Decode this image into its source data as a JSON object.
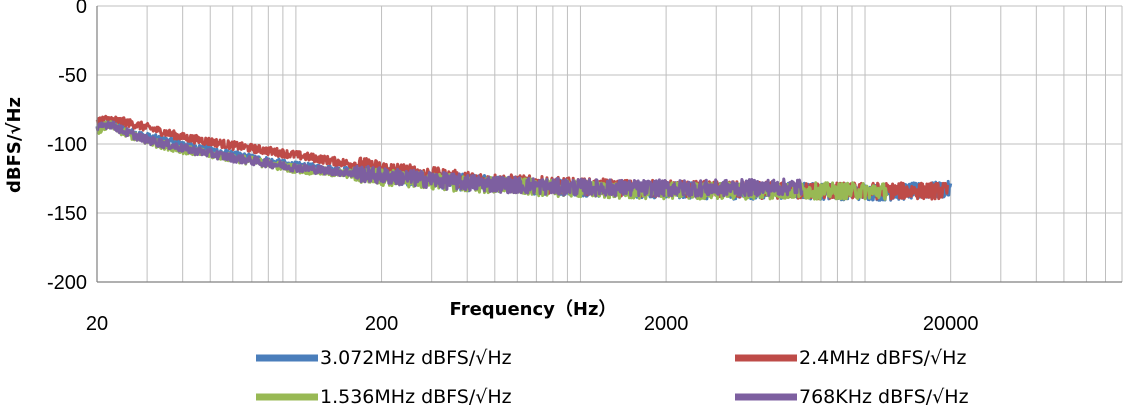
{
  "chart_data": {
    "type": "line",
    "title": "",
    "xlabel": "Frequency（Hz）",
    "ylabel": "dBFS/√Hz",
    "x_scale": "log",
    "xlim": [
      20,
      80000
    ],
    "ylim": [
      -200,
      0
    ],
    "x_ticks": [
      20,
      200,
      2000,
      20000
    ],
    "x_tick_labels": [
      "20",
      "200",
      "2000",
      "20000"
    ],
    "y_ticks": [
      0,
      -50,
      -100,
      -150,
      -200
    ],
    "y_tick_labels": [
      "0",
      "-50",
      "-100",
      "-150",
      "-200"
    ],
    "grid": true,
    "legend_position": "bottom",
    "series": [
      {
        "name": "3.072MHz  dBFS/√Hz",
        "color": "#4a7ebb",
        "x": [
          20,
          22,
          25,
          30,
          40,
          60,
          100,
          200,
          400,
          800,
          1500,
          3000,
          6000,
          12000,
          20000
        ],
        "y": [
          -88,
          -84,
          -90,
          -95,
          -100,
          -108,
          -116,
          -122,
          -128,
          -131,
          -133,
          -134,
          -134,
          -135,
          -133
        ]
      },
      {
        "name": "2.4MHz  dBFS/√Hz",
        "color": "#be4b48",
        "x": [
          20,
          22,
          25,
          30,
          40,
          60,
          100,
          200,
          400,
          800,
          1500,
          3000,
          6000,
          12000,
          19500
        ],
        "y": [
          -83,
          -82,
          -84,
          -88,
          -95,
          -101,
          -108,
          -118,
          -126,
          -130,
          -132,
          -133,
          -134,
          -134,
          -134
        ]
      },
      {
        "name": "1.536MHz  dBFS/√Hz",
        "color": "#98b954",
        "x": [
          20,
          22,
          25,
          30,
          40,
          60,
          100,
          200,
          400,
          800,
          1500,
          3000,
          6000,
          12000
        ],
        "y": [
          -90,
          -86,
          -92,
          -98,
          -104,
          -110,
          -118,
          -124,
          -129,
          -132,
          -134,
          -134,
          -134,
          -134
        ]
      },
      {
        "name": "768KHz  dBFS/√Hz",
        "color": "#7d5fa0",
        "x": [
          20,
          22,
          25,
          30,
          40,
          60,
          100,
          200,
          400,
          800,
          1500,
          3000,
          6000
        ],
        "y": [
          -89,
          -85,
          -91,
          -97,
          -103,
          -110,
          -117,
          -123,
          -128,
          -131,
          -132,
          -132,
          -131
        ]
      }
    ]
  }
}
